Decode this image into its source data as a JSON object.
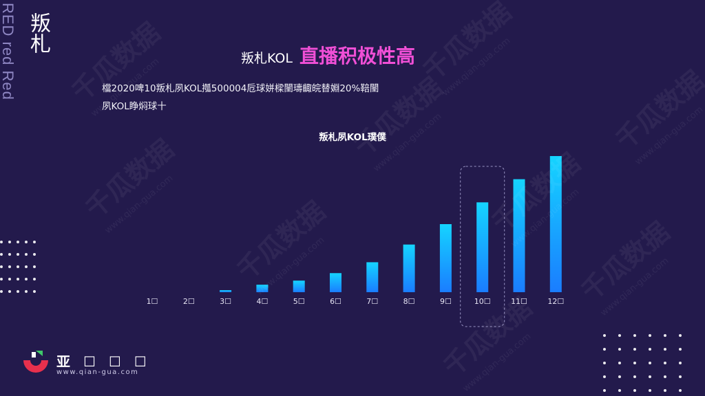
{
  "sidebar": {
    "vertical_en": "RED red Red",
    "vertical_cn": "叛札"
  },
  "header": {
    "title_plain": "叛札KOL",
    "title_accent": "直播积极性高"
  },
  "description": {
    "line1": "檔2020啤10叛札夙KOL摦500004卮球姘樑闉璹齱皖替婣20%鞛闉",
    "line2": "夙KOL睁焖球十"
  },
  "watermark": {
    "cn": "千瓜数据",
    "url": "www.qian-gua.com"
  },
  "logo": {
    "name": "亚",
    "url": "www.qian-gua.com"
  },
  "colors": {
    "background": "#231a4c",
    "accent": "#f04fd6",
    "bar_top": "#15d4ff",
    "bar_bottom": "#1a7dff"
  },
  "chart_data": {
    "type": "bar",
    "title": "叛札夙KOL璞僕",
    "categories": [
      "1",
      "2",
      "3",
      "4",
      "5",
      "6",
      "7",
      "8",
      "9",
      "10",
      "11",
      "12"
    ],
    "values": [
      0,
      0,
      1.5,
      5.5,
      8.5,
      14,
      22,
      35,
      50,
      66,
      83,
      100
    ],
    "ylim": [
      0,
      100
    ],
    "highlight_category": "10",
    "xlabel": "",
    "ylabel": "",
    "grid": false
  }
}
